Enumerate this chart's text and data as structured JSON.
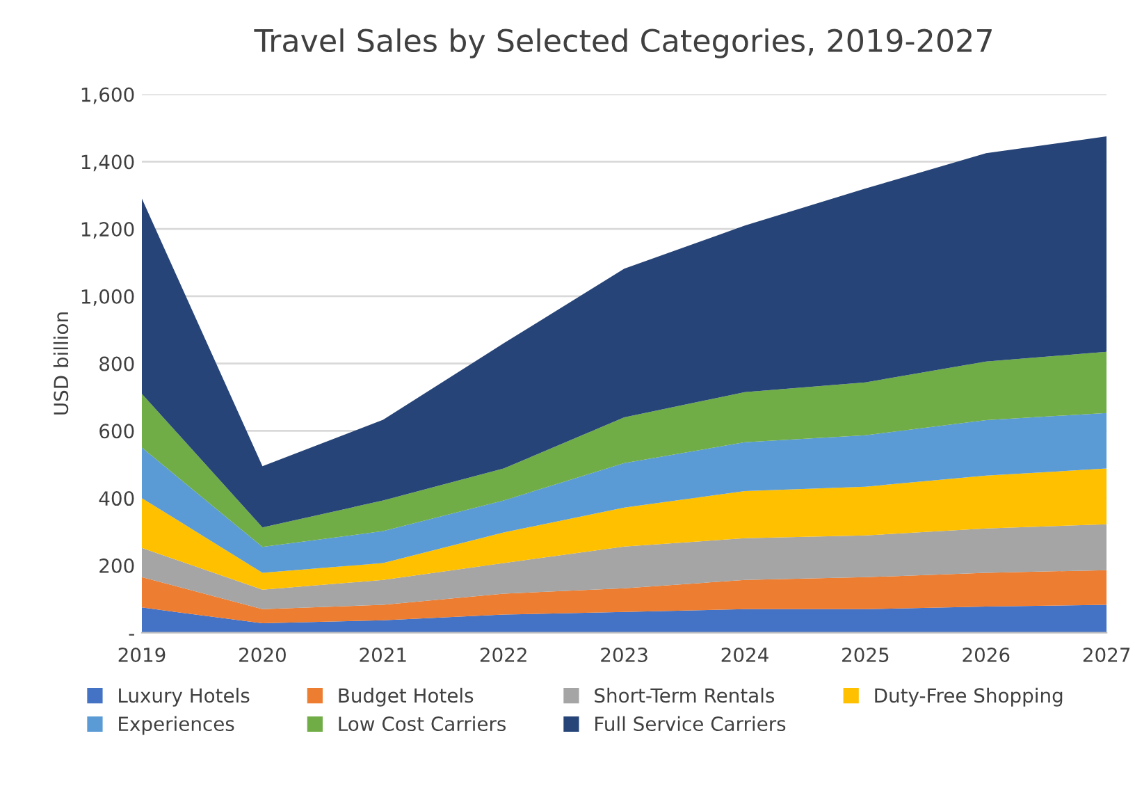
{
  "chart_data": {
    "type": "area",
    "stacked": true,
    "title": "Travel Sales by Selected Categories, 2019-2027",
    "ylabel": "USD billion",
    "x": [
      2019,
      2020,
      2021,
      2022,
      2023,
      2024,
      2025,
      2026,
      2027
    ],
    "xlim": [
      2019,
      2027
    ],
    "xticks": [
      2019,
      2020,
      2021,
      2022,
      2023,
      2024,
      2025,
      2026,
      2027
    ],
    "ylim": [
      0,
      1600
    ],
    "yticks": [
      {
        "value": 0,
        "label": "-"
      },
      200,
      400,
      600,
      800,
      {
        "value": 1000,
        "label": "1,000"
      },
      {
        "value": 1200,
        "label": "1,200"
      },
      {
        "value": 1400,
        "label": "1,400"
      },
      {
        "value": 1600,
        "label": "1,600"
      }
    ],
    "grid": "y",
    "legend": "bottom",
    "series": [
      {
        "name": "Luxury Hotels",
        "color": "#4472c4",
        "values": [
          75,
          28,
          37,
          54,
          62,
          70,
          70,
          78,
          83
        ]
      },
      {
        "name": "Budget Hotels",
        "color": "#ed7d31",
        "values": [
          90,
          42,
          46,
          62,
          70,
          87,
          95,
          100,
          103
        ]
      },
      {
        "name": "Short-Term Rentals",
        "color": "#a5a5a5",
        "values": [
          87,
          58,
          74,
          91,
          124,
          124,
          124,
          132,
          136
        ]
      },
      {
        "name": "Duty-Free Shopping",
        "color": "#ffc000",
        "values": [
          148,
          50,
          50,
          91,
          116,
          140,
          145,
          157,
          166
        ]
      },
      {
        "name": "Experiences",
        "color": "#5b9bd5",
        "values": [
          150,
          77,
          95,
          95,
          132,
          145,
          153,
          165,
          165
        ]
      },
      {
        "name": "Low Cost Carriers",
        "color": "#70ad47",
        "values": [
          160,
          58,
          91,
          95,
          136,
          149,
          157,
          174,
          182
        ]
      },
      {
        "name": "Full Service Carriers",
        "color": "#264478",
        "values": [
          580,
          182,
          240,
          372,
          442,
          495,
          576,
          619,
          640
        ]
      }
    ]
  }
}
